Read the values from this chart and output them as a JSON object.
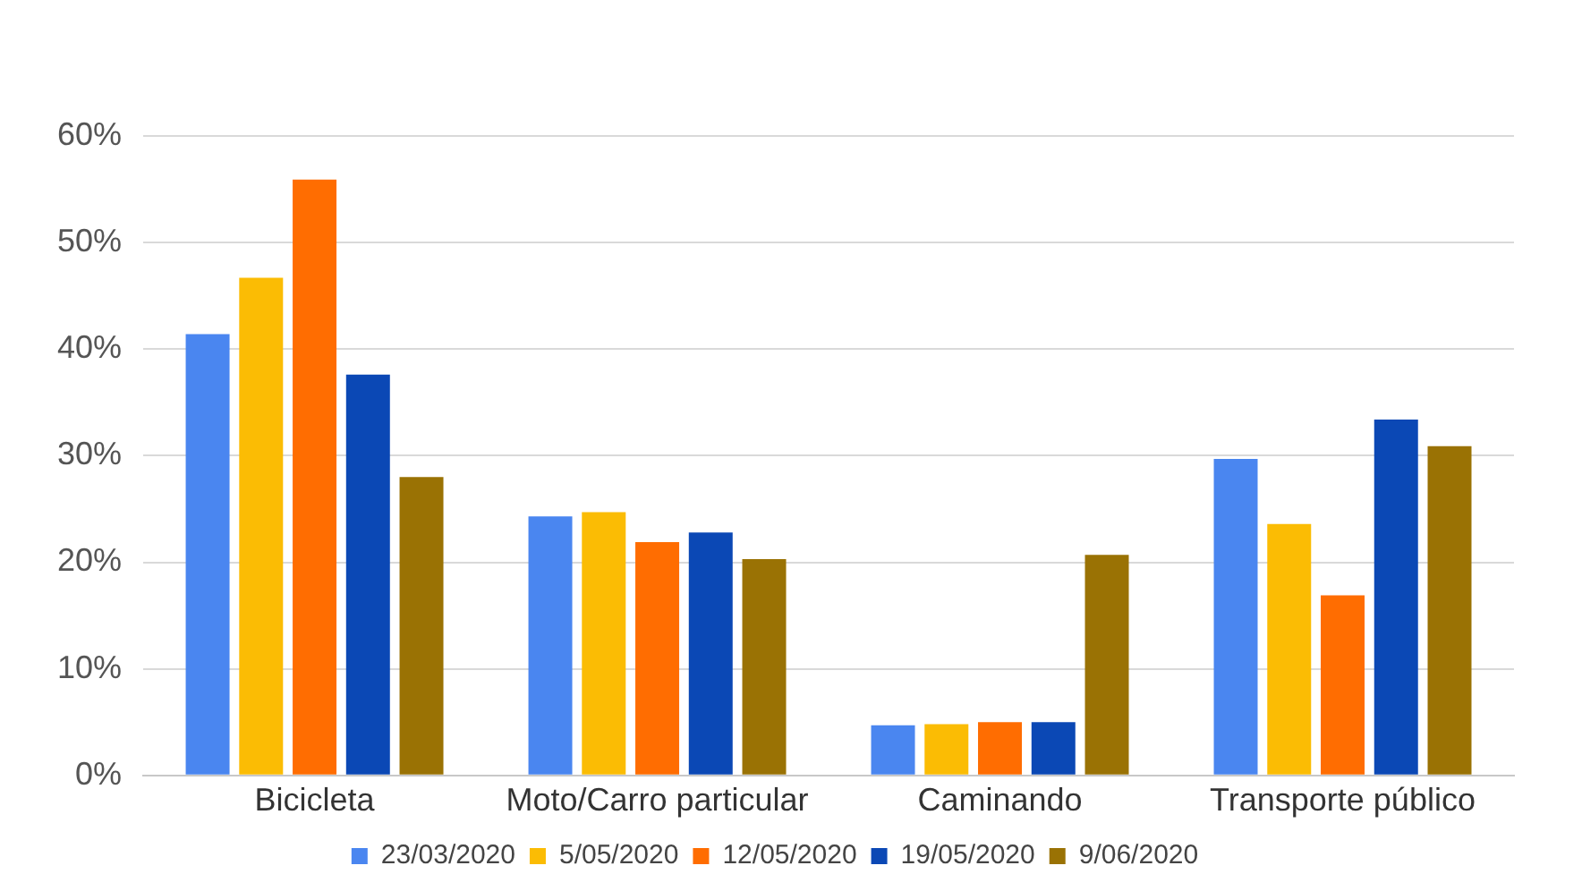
{
  "chart_data": {
    "type": "bar",
    "categories": [
      "Bicicleta",
      "Moto/Carro particular",
      "Caminando",
      "Transporte público"
    ],
    "series": [
      {
        "name": "23/03/2020",
        "color": "#4a86f0",
        "values": [
          41.4,
          24.3,
          4.7,
          29.7
        ]
      },
      {
        "name": "5/05/2020",
        "color": "#fbbc04",
        "values": [
          46.7,
          24.7,
          4.8,
          23.6
        ]
      },
      {
        "name": "12/05/2020",
        "color": "#ff6d01",
        "values": [
          55.9,
          21.9,
          5.0,
          16.9
        ]
      },
      {
        "name": "19/05/2020",
        "color": "#0b48b5",
        "values": [
          37.6,
          22.8,
          5.0,
          33.4
        ]
      },
      {
        "name": "9/06/2020",
        "color": "#9a7204",
        "values": [
          28.0,
          20.3,
          20.7,
          30.9
        ]
      }
    ],
    "ylim": [
      0,
      60
    ],
    "yticks": [
      {
        "value": 0,
        "label": "0%"
      },
      {
        "value": 10,
        "label": "10%"
      },
      {
        "value": 20,
        "label": "20%"
      },
      {
        "value": 30,
        "label": "30%"
      },
      {
        "value": 40,
        "label": "40%"
      },
      {
        "value": 50,
        "label": "50%"
      },
      {
        "value": 60,
        "label": "60%"
      }
    ],
    "grid": "y",
    "legend": "bottom"
  }
}
